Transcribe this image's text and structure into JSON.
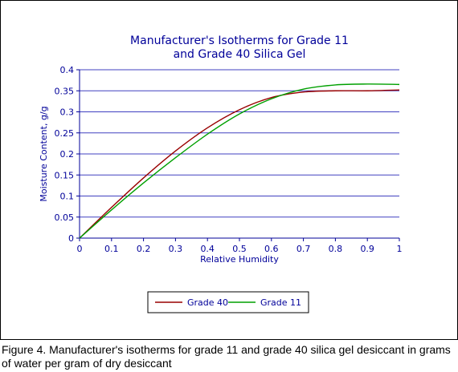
{
  "chart_data": {
    "type": "line",
    "title": [
      "Manufacturer's Isotherms for Grade 11",
      "and Grade 40 Silica Gel"
    ],
    "xlabel": "Relative Humidity",
    "ylabel": "Moisture Content,  g/g",
    "xlim": [
      0,
      1
    ],
    "ylim": [
      0,
      0.4
    ],
    "x_ticks": [
      "0",
      "0.1",
      "0.2",
      "0.3",
      "0.4",
      "0.5",
      "0.6",
      "0.7",
      "0.8",
      "0.9",
      "1"
    ],
    "y_ticks": [
      "0",
      "0.05",
      "0.1",
      "0.15",
      "0.2",
      "0.25",
      "0.3",
      "0.35",
      "0.4"
    ],
    "grid": "horizontal",
    "legend_position": "bottom",
    "x": [
      0,
      0.1,
      0.2,
      0.3,
      0.4,
      0.5,
      0.6,
      0.7,
      0.8,
      0.9,
      1.0
    ],
    "series": [
      {
        "name": "Grade 40",
        "color": "#990000",
        "values": [
          0,
          0.073,
          0.143,
          0.207,
          0.262,
          0.305,
          0.334,
          0.347,
          0.35,
          0.35,
          0.352
        ]
      },
      {
        "name": "Grade 11",
        "color": "#00a000",
        "values": [
          0,
          0.067,
          0.131,
          0.191,
          0.247,
          0.295,
          0.331,
          0.354,
          0.364,
          0.366,
          0.365
        ]
      }
    ]
  },
  "caption": "Figure 4.  Manufacturer's isotherms for grade 11 and grade 40 silica gel desiccant in grams of water per gram of dry desiccant"
}
